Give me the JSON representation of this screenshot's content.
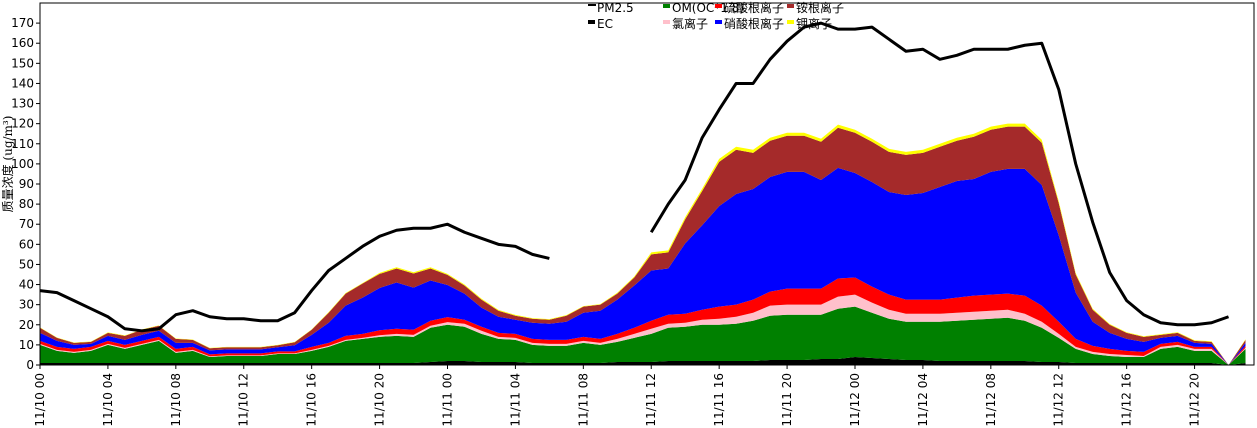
{
  "chart_data": {
    "type": "area",
    "ylabel": "质量浓度 (ug/m³)",
    "ylim": [
      0,
      180
    ],
    "yticks": [
      0,
      10,
      20,
      30,
      40,
      50,
      60,
      70,
      80,
      90,
      100,
      110,
      120,
      130,
      140,
      150,
      160,
      170
    ],
    "xticks": [
      {
        "hour": 0,
        "label": "11/10 00"
      },
      {
        "hour": 4,
        "label": "11/10 04"
      },
      {
        "hour": 8,
        "label": "11/10 08"
      },
      {
        "hour": 12,
        "label": "11/10 12"
      },
      {
        "hour": 16,
        "label": "11/10 16"
      },
      {
        "hour": 20,
        "label": "11/10 20"
      },
      {
        "hour": 24,
        "label": "11/11 00"
      },
      {
        "hour": 28,
        "label": "11/11 04"
      },
      {
        "hour": 32,
        "label": "11/11 08"
      },
      {
        "hour": 36,
        "label": "11/11 12"
      },
      {
        "hour": 40,
        "label": "11/11 16"
      },
      {
        "hour": 44,
        "label": "11/11 20"
      },
      {
        "hour": 48,
        "label": "11/12 00"
      },
      {
        "hour": 52,
        "label": "11/12 04"
      },
      {
        "hour": 56,
        "label": "11/12 08"
      },
      {
        "hour": 60,
        "label": "11/12 12"
      },
      {
        "hour": 64,
        "label": "11/12 16"
      },
      {
        "hour": 68,
        "label": "11/12 20"
      }
    ],
    "xlim": [
      0,
      71.5
    ],
    "grid": false,
    "legend": "top-center",
    "stack_order": [
      "EC",
      "OM(OC*1.8)",
      "氯离子",
      "硫酸根离子",
      "硝酸根离子",
      "铵根离子",
      "钾离子"
    ],
    "legend_order": [
      "PM2.5",
      "OM(OC*1.8)",
      "硫酸根离子",
      "铵根离子",
      "EC",
      "氯离子",
      "硝酸根离子",
      "钾离子"
    ],
    "legend_rows": [
      [
        "PM2.5",
        "OM(OC*1.8)",
        "硫酸根离子",
        "铵根离子"
      ],
      [
        "EC",
        "氯离子",
        "硝酸根离子",
        "钾离子"
      ]
    ],
    "series": [
      {
        "name": "PM2.5",
        "kind": "line",
        "color": "#000000",
        "values": [
          37,
          36,
          32,
          28,
          24,
          18,
          17,
          18,
          25,
          27,
          24,
          23,
          23,
          22,
          22,
          26,
          37,
          47,
          53,
          59,
          64,
          67,
          68,
          68,
          70,
          66,
          63,
          60,
          59,
          55,
          53,
          null,
          null,
          null,
          null,
          null,
          66,
          80,
          92,
          113,
          127,
          140,
          140,
          152,
          161,
          168,
          170,
          167,
          167,
          168,
          162,
          156,
          157,
          152,
          154,
          157,
          157,
          157,
          159,
          160,
          137,
          100,
          71,
          46,
          32,
          25,
          21,
          20,
          20,
          21,
          24,
          null
        ]
      },
      {
        "name": "EC",
        "kind": "stack",
        "color": "#000000",
        "values": [
          1,
          1,
          1,
          1,
          1,
          1,
          1,
          1,
          1,
          1,
          1,
          1,
          1,
          1,
          1,
          1,
          1,
          1,
          1,
          1,
          1,
          1,
          1,
          1.5,
          2,
          2,
          1.5,
          1.5,
          1.5,
          1,
          1,
          1,
          1,
          1,
          1.5,
          1.5,
          1.5,
          2,
          2,
          2,
          2,
          2,
          2,
          2.5,
          2.5,
          2.5,
          3,
          3,
          4,
          3.5,
          3,
          2.5,
          2.5,
          2,
          2,
          2,
          2,
          2,
          2,
          1.5,
          1.5,
          1,
          1,
          1,
          1,
          1,
          1,
          1,
          1,
          1,
          0,
          1
        ]
      },
      {
        "name": "OM(OC*1.8)",
        "kind": "stack",
        "color": "#008000",
        "values": [
          9,
          6,
          5,
          6,
          9,
          7,
          9,
          11,
          5,
          6,
          3,
          3.5,
          3.5,
          3.5,
          4.5,
          4.5,
          6,
          8,
          11,
          12,
          13,
          13.5,
          13,
          17,
          18,
          17,
          14,
          11.5,
          11,
          9,
          8.5,
          8.5,
          10,
          9,
          10,
          12,
          14,
          16.5,
          17,
          18,
          18,
          18.5,
          20,
          22,
          22.5,
          22.5,
          22,
          25,
          25,
          22.5,
          20,
          19,
          19,
          19.5,
          20,
          20.5,
          21,
          21.5,
          20,
          17,
          12,
          7,
          4.5,
          3.5,
          3,
          3,
          7,
          8,
          6,
          6,
          0,
          7
        ]
      },
      {
        "name": "氯离子",
        "kind": "stack",
        "color": "#FFC0CB",
        "values": [
          0.5,
          0.5,
          0.5,
          0.5,
          0.5,
          0.5,
          0.5,
          0.5,
          0.5,
          0.5,
          0.3,
          0.3,
          0.3,
          0.3,
          0.3,
          0.3,
          0.5,
          0.5,
          0.5,
          0.5,
          0.8,
          1,
          1,
          1,
          1.3,
          1.5,
          1.5,
          1,
          1,
          1,
          1,
          1,
          1,
          1,
          1.5,
          2,
          2.5,
          2,
          2,
          2.5,
          3,
          3.5,
          4,
          5,
          5,
          5,
          5,
          6,
          6,
          5,
          4.5,
          4,
          4,
          4,
          4,
          4,
          4,
          4,
          3.5,
          3,
          2,
          1,
          1,
          1,
          1,
          0.5,
          1,
          1,
          1,
          1,
          0,
          0.5
        ]
      },
      {
        "name": "硫酸根离子",
        "kind": "stack",
        "color": "#FF0000",
        "values": [
          1.5,
          1.5,
          1.5,
          1.5,
          1.5,
          1.5,
          1.5,
          1.5,
          1.5,
          1.5,
          1,
          1,
          1,
          1,
          1,
          1,
          1.5,
          1.5,
          2,
          2,
          2.5,
          2.5,
          2.5,
          2.5,
          2.5,
          2,
          2,
          2,
          2,
          2,
          2,
          2,
          2,
          2,
          2.5,
          3,
          4,
          4.5,
          4.5,
          5,
          6,
          6,
          6.5,
          7,
          8,
          8,
          8,
          9,
          8.5,
          8,
          7.5,
          7,
          7,
          7,
          7.5,
          8,
          8,
          8,
          9,
          8,
          6,
          4,
          3,
          2.5,
          2,
          2,
          1.5,
          1.5,
          1,
          1,
          0,
          1
        ]
      },
      {
        "name": "硝酸根离子",
        "kind": "stack",
        "color": "#0000FF",
        "values": [
          4,
          3,
          2,
          1.5,
          2.5,
          2.5,
          3,
          3,
          3,
          2,
          2,
          2,
          2,
          2,
          2,
          3,
          6,
          10,
          15,
          18,
          21,
          23,
          21,
          20,
          16,
          13,
          9.5,
          8,
          7,
          8,
          8,
          9,
          12,
          14,
          17,
          21,
          25,
          23,
          35,
          42,
          50,
          55,
          55,
          57,
          58,
          58,
          54,
          55,
          52,
          52,
          51,
          52,
          53,
          56,
          58,
          58,
          61,
          62,
          63,
          60,
          43,
          23,
          12,
          8,
          6,
          5,
          3,
          3,
          2,
          1.5,
          0,
          1.5
        ]
      },
      {
        "name": "铵根离子",
        "kind": "stack",
        "color": "#A52A2A",
        "values": [
          2.5,
          1.5,
          1,
          1,
          1.5,
          2,
          2.5,
          2.5,
          2,
          1.5,
          1,
          1,
          1,
          1,
          1,
          1.5,
          2.5,
          5,
          6,
          7,
          7,
          7,
          7,
          6,
          5,
          4,
          4,
          3,
          2,
          2,
          2,
          3,
          3,
          3,
          3,
          4,
          8,
          8,
          12,
          17,
          22,
          22,
          18,
          18,
          18,
          18,
          19,
          20,
          20,
          20,
          20,
          20,
          20,
          20,
          20,
          21,
          21,
          21,
          21,
          21,
          16,
          9,
          6,
          4,
          3,
          2.5,
          1.5,
          1.5,
          1,
          1,
          0,
          1.5
        ]
      },
      {
        "name": "钾离子",
        "kind": "stack",
        "color": "#FFFF00",
        "values": [
          0.2,
          0.2,
          0.2,
          0.2,
          0.2,
          0.2,
          0.2,
          0.2,
          0.2,
          0.2,
          0.2,
          0.2,
          0.2,
          0.2,
          0.2,
          0.2,
          0.2,
          0.3,
          0.3,
          0.3,
          0.5,
          0.6,
          0.6,
          0.6,
          0.5,
          0.5,
          0.5,
          0.4,
          0.4,
          0.3,
          0.3,
          0.3,
          0.3,
          0.3,
          0.4,
          0.5,
          1,
          1,
          1,
          1.2,
          1.5,
          1.5,
          1.5,
          1.5,
          1.5,
          1.5,
          1.5,
          1.5,
          1.5,
          1.5,
          1.5,
          1.5,
          1.5,
          1.5,
          1.5,
          1.5,
          1.5,
          1.5,
          1.5,
          1.5,
          1,
          0.7,
          0.5,
          0.4,
          0.3,
          0.3,
          0.3,
          0.3,
          0.3,
          0.3,
          0,
          0.3
        ]
      }
    ]
  }
}
